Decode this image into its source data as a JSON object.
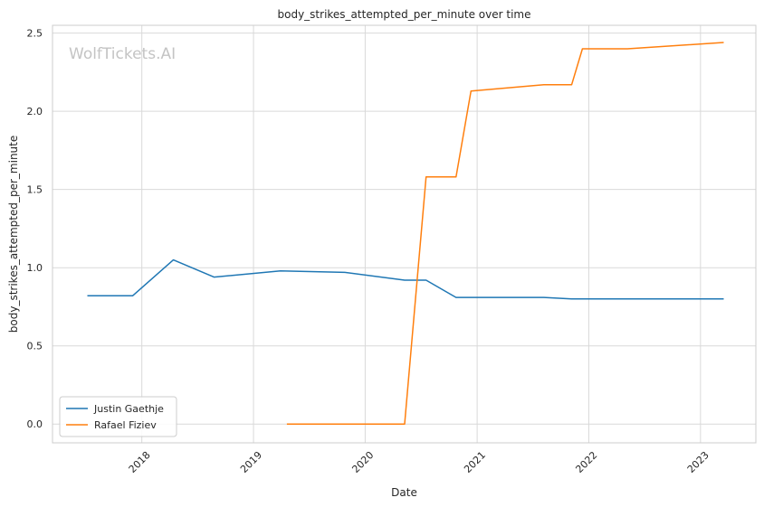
{
  "chart_data": {
    "type": "line",
    "title": "body_strikes_attempted_per_minute over time",
    "xlabel": "Date",
    "ylabel": "body_strikes_attempted_per_minute",
    "watermark": "WolfTickets.AI",
    "xlim": [
      "2017-03-15",
      "2023-07-01"
    ],
    "ylim": [
      -0.12,
      2.55
    ],
    "x_ticks": [
      "2018",
      "2019",
      "2020",
      "2021",
      "2022",
      "2023"
    ],
    "y_ticks": [
      "0.0",
      "0.5",
      "1.0",
      "1.5",
      "2.0",
      "2.5"
    ],
    "grid": true,
    "legend_position": "lower-left",
    "series": [
      {
        "name": "Justin Gaethje",
        "color": "#1f77b4",
        "points": [
          {
            "x": "2017-07-07",
            "y": 0.82
          },
          {
            "x": "2017-12-02",
            "y": 0.82
          },
          {
            "x": "2018-04-14",
            "y": 1.05
          },
          {
            "x": "2018-08-25",
            "y": 0.94
          },
          {
            "x": "2019-03-30",
            "y": 0.98
          },
          {
            "x": "2019-10-26",
            "y": 0.97
          },
          {
            "x": "2020-05-09",
            "y": 0.92
          },
          {
            "x": "2020-07-18",
            "y": 0.92
          },
          {
            "x": "2020-10-24",
            "y": 0.81
          },
          {
            "x": "2021-08-07",
            "y": 0.81
          },
          {
            "x": "2021-11-06",
            "y": 0.8
          },
          {
            "x": "2023-03-18",
            "y": 0.8
          }
        ]
      },
      {
        "name": "Rafael Fiziev",
        "color": "#ff7f0e",
        "points": [
          {
            "x": "2019-04-20",
            "y": 0.0
          },
          {
            "x": "2020-05-09",
            "y": 0.0
          },
          {
            "x": "2020-07-18",
            "y": 1.58
          },
          {
            "x": "2020-10-24",
            "y": 1.58
          },
          {
            "x": "2020-12-12",
            "y": 2.13
          },
          {
            "x": "2021-08-07",
            "y": 2.17
          },
          {
            "x": "2021-11-06",
            "y": 2.17
          },
          {
            "x": "2021-12-11",
            "y": 2.4
          },
          {
            "x": "2022-05-07",
            "y": 2.4
          },
          {
            "x": "2023-03-18",
            "y": 2.44
          }
        ]
      }
    ]
  }
}
